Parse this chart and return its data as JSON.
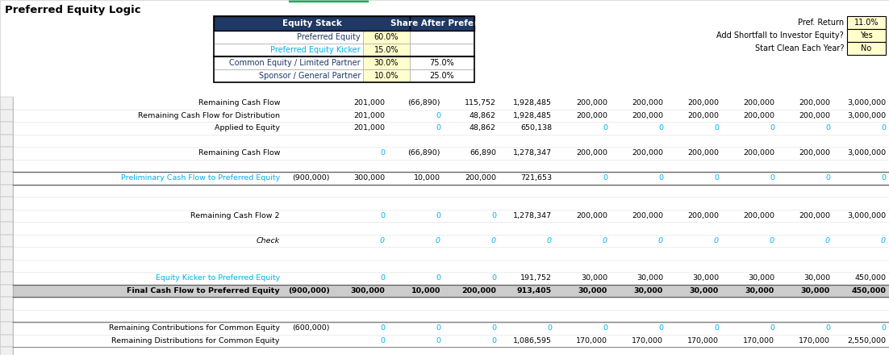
{
  "title": "Preferred Equity Logic",
  "header_bg": "#1F3864",
  "teal_color": "#00B0F0",
  "yellow_bg": "#FFFFCC",
  "gray_bg": "#C0C0C0",
  "equity_stack_rows": [
    [
      "Preferred Equity",
      "60.0%",
      ""
    ],
    [
      "Preferred Equity Kicker",
      "15.0%",
      ""
    ],
    [
      "Common Equity / Limited Partner",
      "30.0%",
      "75.0%"
    ],
    [
      "Sponsor / General Partner",
      "10.0%",
      "25.0%"
    ]
  ],
  "eq_label_colors": [
    "#1F3864",
    "#00B0F0",
    "#1F3864",
    "#1F3864"
  ],
  "pref_return_label": "Pref. Return",
  "pref_return_val": "11.0%",
  "shortfall_label": "Add Shortfall to Investor Equity?",
  "shortfall_val": "Yes",
  "start_clean_label": "Start Clean Each Year?",
  "start_clean_val": "No",
  "data_rows": [
    {
      "label": "Remaining Cash Flow",
      "bold": false,
      "italic": false,
      "colored_label": false,
      "has_leading": null,
      "bg": null,
      "values": [
        "201,000",
        "(66,890)",
        "115,752",
        "1,928,485",
        "200,000",
        "200,000",
        "200,000",
        "200,000",
        "200,000",
        "3,000,000"
      ],
      "value_colors": [
        "black",
        "black",
        "black",
        "black",
        "black",
        "black",
        "black",
        "black",
        "black",
        "black"
      ]
    },
    {
      "label": "Remaining Cash Flow for Distribution",
      "bold": false,
      "italic": false,
      "colored_label": false,
      "has_leading": null,
      "bg": null,
      "values": [
        "201,000",
        "0",
        "48,862",
        "1,928,485",
        "200,000",
        "200,000",
        "200,000",
        "200,000",
        "200,000",
        "3,000,000"
      ],
      "value_colors": [
        "black",
        "#00B0F0",
        "black",
        "black",
        "black",
        "black",
        "black",
        "black",
        "black",
        "black"
      ]
    },
    {
      "label": "Applied to Equity",
      "bold": false,
      "italic": false,
      "colored_label": false,
      "has_leading": null,
      "bg": null,
      "values": [
        "201,000",
        "0",
        "48,862",
        "650,138",
        "0",
        "0",
        "0",
        "0",
        "0",
        "0"
      ],
      "value_colors": [
        "black",
        "#00B0F0",
        "black",
        "black",
        "#00B0F0",
        "#00B0F0",
        "#00B0F0",
        "#00B0F0",
        "#00B0F0",
        "#00B0F0"
      ]
    },
    {
      "label": "",
      "bold": false,
      "italic": false,
      "colored_label": false,
      "has_leading": null,
      "bg": null,
      "values": [
        "",
        "",
        "",
        "",
        "",
        "",
        "",
        "",
        "",
        ""
      ],
      "value_colors": [
        "black",
        "black",
        "black",
        "black",
        "black",
        "black",
        "black",
        "black",
        "black",
        "black"
      ]
    },
    {
      "label": "Remaining Cash Flow",
      "bold": false,
      "italic": false,
      "colored_label": false,
      "has_leading": null,
      "bg": null,
      "values": [
        "0",
        "(66,890)",
        "66,890",
        "1,278,347",
        "200,000",
        "200,000",
        "200,000",
        "200,000",
        "200,000",
        "3,000,000"
      ],
      "value_colors": [
        "#00B0F0",
        "black",
        "black",
        "black",
        "black",
        "black",
        "black",
        "black",
        "black",
        "black"
      ]
    },
    {
      "label": "",
      "bold": false,
      "italic": false,
      "colored_label": false,
      "has_leading": null,
      "bg": null,
      "values": [
        "",
        "",
        "",
        "",
        "",
        "",
        "",
        "",
        "",
        ""
      ],
      "value_colors": [
        "black",
        "black",
        "black",
        "black",
        "black",
        "black",
        "black",
        "black",
        "black",
        "black"
      ]
    },
    {
      "label": "Preliminary Cash Flow to Preferred Equity",
      "bold": false,
      "italic": false,
      "colored_label": "#00B0F0",
      "has_leading": "(900,000)",
      "leading_color": "black",
      "bg": null,
      "border_top": true,
      "border_bottom": true,
      "values": [
        "300,000",
        "10,000",
        "200,000",
        "721,653",
        "0",
        "0",
        "0",
        "0",
        "0",
        "0"
      ],
      "value_colors": [
        "black",
        "black",
        "black",
        "black",
        "#00B0F0",
        "#00B0F0",
        "#00B0F0",
        "#00B0F0",
        "#00B0F0",
        "#00B0F0"
      ]
    },
    {
      "label": "",
      "bold": false,
      "italic": false,
      "colored_label": false,
      "has_leading": null,
      "bg": null,
      "values": [
        "",
        "",
        "",
        "",
        "",
        "",
        "",
        "",
        "",
        ""
      ],
      "value_colors": [
        "black",
        "black",
        "black",
        "black",
        "black",
        "black",
        "black",
        "black",
        "black",
        "black"
      ]
    },
    {
      "label": "",
      "bold": false,
      "italic": false,
      "colored_label": false,
      "has_leading": null,
      "bg": null,
      "values": [
        "",
        "",
        "",
        "",
        "",
        "",
        "",
        "",
        "",
        ""
      ],
      "value_colors": [
        "black",
        "black",
        "black",
        "black",
        "black",
        "black",
        "black",
        "black",
        "black",
        "black"
      ]
    },
    {
      "label": "Remaining Cash Flow 2",
      "bold": false,
      "italic": false,
      "colored_label": false,
      "has_leading": null,
      "bg": null,
      "values": [
        "0",
        "0",
        "0",
        "1,278,347",
        "200,000",
        "200,000",
        "200,000",
        "200,000",
        "200,000",
        "3,000,000"
      ],
      "value_colors": [
        "#00B0F0",
        "#00B0F0",
        "#00B0F0",
        "black",
        "black",
        "black",
        "black",
        "black",
        "black",
        "black"
      ]
    },
    {
      "label": "",
      "bold": false,
      "italic": false,
      "colored_label": false,
      "has_leading": null,
      "bg": null,
      "values": [
        "",
        "",
        "",
        "",
        "",
        "",
        "",
        "",
        "",
        ""
      ],
      "value_colors": [
        "black",
        "black",
        "black",
        "black",
        "black",
        "black",
        "black",
        "black",
        "black",
        "black"
      ]
    },
    {
      "label": "Check",
      "bold": false,
      "italic": true,
      "colored_label": false,
      "has_leading": null,
      "bg": null,
      "values": [
        "0",
        "0",
        "0",
        "0",
        "0",
        "0",
        "0",
        "0",
        "0",
        "0"
      ],
      "value_colors": [
        "#00B0F0",
        "#00B0F0",
        "#00B0F0",
        "#00B0F0",
        "#00B0F0",
        "#00B0F0",
        "#00B0F0",
        "#00B0F0",
        "#00B0F0",
        "#00B0F0"
      ]
    },
    {
      "label": "",
      "bold": false,
      "italic": false,
      "colored_label": false,
      "has_leading": null,
      "bg": null,
      "values": [
        "",
        "",
        "",
        "",
        "",
        "",
        "",
        "",
        "",
        ""
      ],
      "value_colors": [
        "black",
        "black",
        "black",
        "black",
        "black",
        "black",
        "black",
        "black",
        "black",
        "black"
      ]
    },
    {
      "label": "",
      "bold": false,
      "italic": false,
      "colored_label": false,
      "has_leading": null,
      "bg": null,
      "values": [
        "",
        "",
        "",
        "",
        "",
        "",
        "",
        "",
        "",
        ""
      ],
      "value_colors": [
        "black",
        "black",
        "black",
        "black",
        "black",
        "black",
        "black",
        "black",
        "black",
        "black"
      ]
    },
    {
      "label": "Equity Kicker to Preferred Equity",
      "bold": false,
      "italic": false,
      "colored_label": "#00B0F0",
      "has_leading": null,
      "bg": null,
      "values": [
        "0",
        "0",
        "0",
        "191,752",
        "30,000",
        "30,000",
        "30,000",
        "30,000",
        "30,000",
        "450,000"
      ],
      "value_colors": [
        "#00B0F0",
        "#00B0F0",
        "#00B0F0",
        "black",
        "black",
        "black",
        "black",
        "black",
        "black",
        "black"
      ]
    },
    {
      "label": "Final Cash Flow to Preferred Equity",
      "bold": true,
      "italic": false,
      "colored_label": false,
      "has_leading": "(900,000)",
      "leading_color": "black",
      "bg": "#CCCCCC",
      "border_top": true,
      "border_bottom": true,
      "values": [
        "300,000",
        "10,000",
        "200,000",
        "913,405",
        "30,000",
        "30,000",
        "30,000",
        "30,000",
        "30,000",
        "450,000"
      ],
      "value_colors": [
        "black",
        "black",
        "black",
        "black",
        "black",
        "black",
        "black",
        "black",
        "black",
        "black"
      ]
    },
    {
      "label": "",
      "bold": false,
      "italic": false,
      "colored_label": false,
      "has_leading": null,
      "bg": null,
      "values": [
        "",
        "",
        "",
        "",
        "",
        "",
        "",
        "",
        "",
        ""
      ],
      "value_colors": [
        "black",
        "black",
        "black",
        "black",
        "black",
        "black",
        "black",
        "black",
        "black",
        "black"
      ]
    },
    {
      "label": "",
      "bold": false,
      "italic": false,
      "colored_label": false,
      "has_leading": null,
      "bg": null,
      "values": [
        "",
        "",
        "",
        "",
        "",
        "",
        "",
        "",
        "",
        ""
      ],
      "value_colors": [
        "black",
        "black",
        "black",
        "black",
        "black",
        "black",
        "black",
        "black",
        "black",
        "black"
      ]
    },
    {
      "label": "Remaining Contributions for Common Equity",
      "bold": false,
      "italic": false,
      "colored_label": false,
      "has_leading": "(600,000)",
      "leading_color": "black",
      "bg": null,
      "border_top": true,
      "values": [
        "0",
        "0",
        "0",
        "0",
        "0",
        "0",
        "0",
        "0",
        "0",
        "0"
      ],
      "value_colors": [
        "#00B0F0",
        "#00B0F0",
        "#00B0F0",
        "#00B0F0",
        "#00B0F0",
        "#00B0F0",
        "#00B0F0",
        "#00B0F0",
        "#00B0F0",
        "#00B0F0"
      ]
    },
    {
      "label": "Remaining Distributions for Common Equity",
      "bold": false,
      "italic": false,
      "colored_label": false,
      "has_leading": null,
      "bg": null,
      "values": [
        "0",
        "0",
        "0",
        "1,086,595",
        "170,000",
        "170,000",
        "170,000",
        "170,000",
        "170,000",
        "2,550,000"
      ],
      "value_colors": [
        "#00B0F0",
        "#00B0F0",
        "#00B0F0",
        "black",
        "black",
        "black",
        "black",
        "black",
        "black",
        "black"
      ]
    },
    {
      "label": "",
      "bold": false,
      "italic": false,
      "colored_label": false,
      "has_leading": null,
      "bg": null,
      "values": [
        "",
        "",
        "",
        "",
        "",
        "",
        "",
        "",
        "",
        ""
      ],
      "value_colors": [
        "black",
        "black",
        "black",
        "black",
        "black",
        "black",
        "black",
        "black",
        "black",
        "black"
      ]
    }
  ]
}
